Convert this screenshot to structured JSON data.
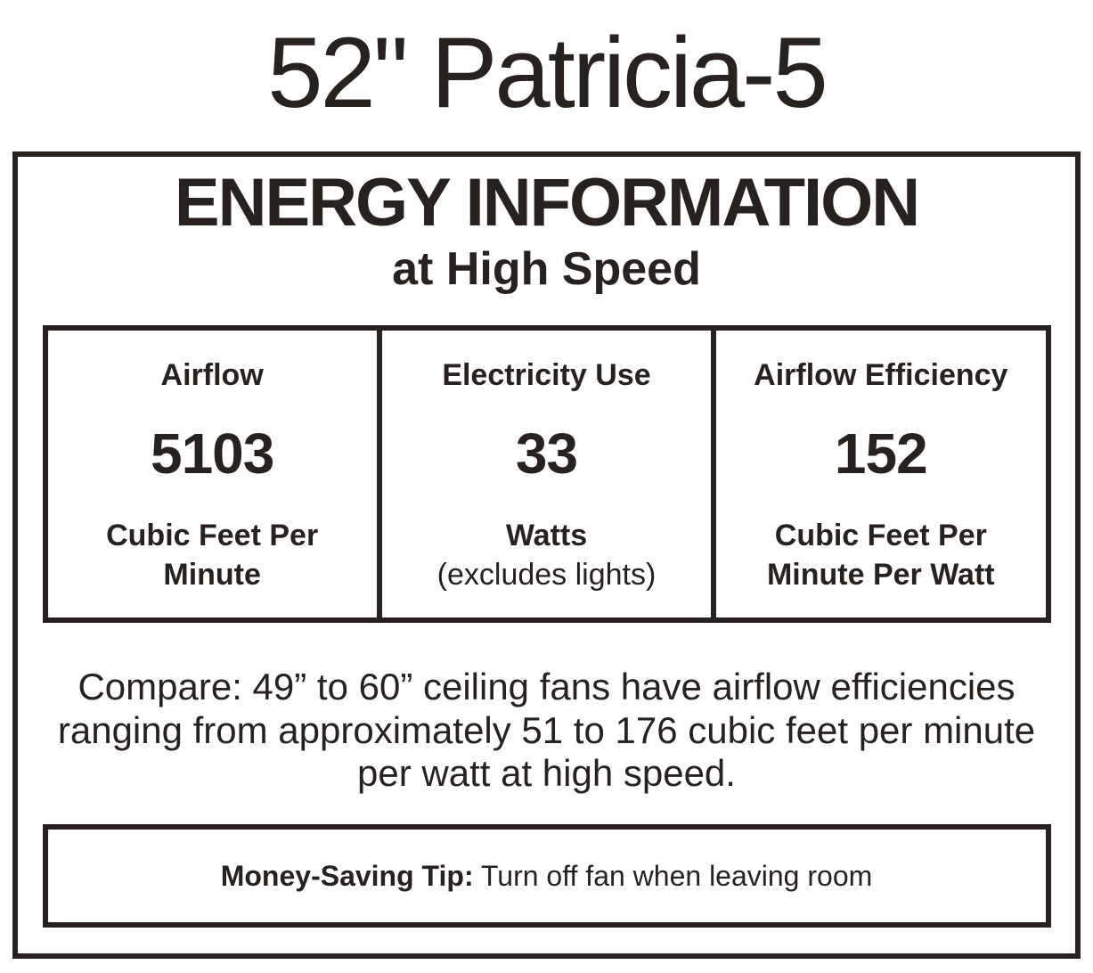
{
  "page": {
    "title": "52\" Patricia-5"
  },
  "label": {
    "heading": "ENERGY INFORMATION",
    "subheading": "at High Speed",
    "metrics": [
      {
        "name": "Airflow",
        "value": "5103",
        "unit": "Cubic Feet Per Minute"
      },
      {
        "name": "Electricity Use",
        "value": "33",
        "unit": "Watts",
        "unit_note": "(excludes lights)"
      },
      {
        "name": "Airflow Efficiency",
        "value": "152",
        "unit": "Cubic Feet Per Minute Per Watt"
      }
    ],
    "compare_text": "Compare: 49” to 60” ceiling fans have airflow efficiencies ranging from approximately 51 to 176 cubic feet per minute per watt at high speed.",
    "tip": {
      "label": "Money-Saving Tip:",
      "text": "Turn off fan when leaving room"
    }
  },
  "colors": {
    "ink": "#272220",
    "background": "#ffffff"
  }
}
